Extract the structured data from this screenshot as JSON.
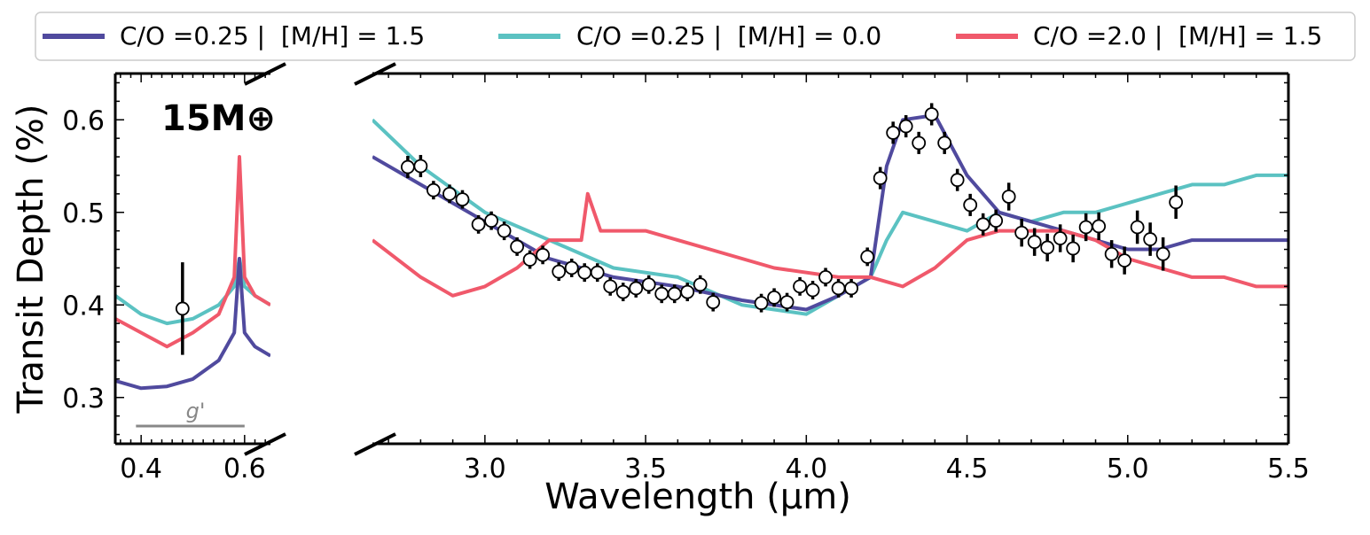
{
  "chart_data": {
    "type": "line",
    "ylabel": "Transit Depth (%)",
    "xlabel": "Wavelength (μm)",
    "annotation": "15M⊕",
    "filter_label": "g'",
    "filter_range": [
      0.39,
      0.6
    ],
    "ylim": [
      0.25,
      0.65
    ],
    "yticks": [
      "0.3",
      "0.4",
      "0.5",
      "0.6"
    ],
    "yticks_values": [
      0.3,
      0.4,
      0.5,
      0.6
    ],
    "panels": [
      {
        "xlim": [
          0.35,
          0.65
        ],
        "xticks": [
          "0.4",
          "0.6"
        ],
        "xticks_values": [
          0.4,
          0.6
        ]
      },
      {
        "xlim": [
          2.65,
          5.5
        ],
        "xticks": [
          "3.0",
          "3.5",
          "4.0",
          "4.5",
          "5.0",
          "5.5"
        ],
        "xticks_values": [
          3.0,
          3.5,
          4.0,
          4.5,
          5.0,
          5.5
        ]
      }
    ],
    "legend_position": "top",
    "series": [
      {
        "name": "C/O =0.25 |  [M/H] = 1.5",
        "color": "#504a9e",
        "optical": {
          "x": [
            0.35,
            0.4,
            0.45,
            0.5,
            0.55,
            0.58,
            0.59,
            0.6,
            0.62,
            0.65
          ],
          "y": [
            0.318,
            0.31,
            0.312,
            0.32,
            0.34,
            0.37,
            0.45,
            0.37,
            0.355,
            0.345
          ]
        },
        "ir": {
          "x": [
            2.65,
            2.8,
            3.0,
            3.2,
            3.4,
            3.6,
            3.8,
            4.0,
            4.1,
            4.2,
            4.25,
            4.3,
            4.4,
            4.5,
            4.6,
            4.7,
            4.8,
            4.9,
            5.0,
            5.1,
            5.2,
            5.3,
            5.4,
            5.5
          ],
          "y": [
            0.56,
            0.53,
            0.49,
            0.45,
            0.43,
            0.42,
            0.405,
            0.395,
            0.41,
            0.43,
            0.55,
            0.6,
            0.605,
            0.54,
            0.5,
            0.49,
            0.48,
            0.47,
            0.46,
            0.46,
            0.47,
            0.47,
            0.47,
            0.47
          ]
        }
      },
      {
        "name": "C/O =0.25 |  [M/H] = 0.0",
        "color": "#5bc2c2",
        "optical": {
          "x": [
            0.35,
            0.4,
            0.45,
            0.5,
            0.55,
            0.58,
            0.59,
            0.6,
            0.62,
            0.65
          ],
          "y": [
            0.41,
            0.39,
            0.38,
            0.385,
            0.4,
            0.42,
            0.45,
            0.42,
            0.41,
            0.4
          ]
        },
        "ir": {
          "x": [
            2.65,
            2.8,
            3.0,
            3.2,
            3.4,
            3.6,
            3.8,
            4.0,
            4.1,
            4.2,
            4.25,
            4.3,
            4.4,
            4.5,
            4.6,
            4.7,
            4.8,
            4.9,
            5.0,
            5.1,
            5.2,
            5.3,
            5.4,
            5.5
          ],
          "y": [
            0.6,
            0.55,
            0.5,
            0.47,
            0.44,
            0.43,
            0.4,
            0.39,
            0.41,
            0.43,
            0.47,
            0.5,
            0.49,
            0.48,
            0.5,
            0.49,
            0.5,
            0.5,
            0.51,
            0.52,
            0.53,
            0.53,
            0.54,
            0.54
          ]
        }
      },
      {
        "name": "C/O =2.0 |  [M/H] = 1.5",
        "color": "#f0596b",
        "optical": {
          "x": [
            0.35,
            0.4,
            0.45,
            0.5,
            0.55,
            0.58,
            0.59,
            0.6,
            0.62,
            0.65
          ],
          "y": [
            0.385,
            0.37,
            0.355,
            0.37,
            0.39,
            0.43,
            0.56,
            0.43,
            0.41,
            0.4
          ]
        },
        "ir": {
          "x": [
            2.65,
            2.8,
            2.9,
            3.0,
            3.1,
            3.2,
            3.3,
            3.32,
            3.36,
            3.5,
            3.7,
            3.9,
            4.1,
            4.2,
            4.3,
            4.4,
            4.5,
            4.6,
            4.7,
            4.8,
            4.9,
            5.0,
            5.1,
            5.2,
            5.3,
            5.4,
            5.5
          ],
          "y": [
            0.47,
            0.43,
            0.41,
            0.42,
            0.44,
            0.47,
            0.47,
            0.52,
            0.48,
            0.48,
            0.46,
            0.44,
            0.43,
            0.43,
            0.42,
            0.44,
            0.47,
            0.48,
            0.48,
            0.48,
            0.47,
            0.45,
            0.44,
            0.43,
            0.43,
            0.42,
            0.42
          ]
        }
      }
    ],
    "observations": {
      "optical": [
        {
          "x": 0.48,
          "y": 0.396,
          "err": 0.05
        }
      ],
      "ir": [
        {
          "x": 2.76,
          "y": 0.549,
          "err": 0.012
        },
        {
          "x": 2.8,
          "y": 0.55,
          "err": 0.012
        },
        {
          "x": 2.84,
          "y": 0.524,
          "err": 0.01
        },
        {
          "x": 2.89,
          "y": 0.52,
          "err": 0.01
        },
        {
          "x": 2.93,
          "y": 0.514,
          "err": 0.01
        },
        {
          "x": 2.98,
          "y": 0.487,
          "err": 0.01
        },
        {
          "x": 3.02,
          "y": 0.491,
          "err": 0.01
        },
        {
          "x": 3.06,
          "y": 0.48,
          "err": 0.01
        },
        {
          "x": 3.1,
          "y": 0.463,
          "err": 0.01
        },
        {
          "x": 3.14,
          "y": 0.449,
          "err": 0.01
        },
        {
          "x": 3.18,
          "y": 0.454,
          "err": 0.01
        },
        {
          "x": 3.23,
          "y": 0.436,
          "err": 0.01
        },
        {
          "x": 3.27,
          "y": 0.44,
          "err": 0.01
        },
        {
          "x": 3.31,
          "y": 0.435,
          "err": 0.01
        },
        {
          "x": 3.35,
          "y": 0.435,
          "err": 0.01
        },
        {
          "x": 3.39,
          "y": 0.42,
          "err": 0.01
        },
        {
          "x": 3.43,
          "y": 0.414,
          "err": 0.01
        },
        {
          "x": 3.47,
          "y": 0.418,
          "err": 0.01
        },
        {
          "x": 3.51,
          "y": 0.422,
          "err": 0.01
        },
        {
          "x": 3.55,
          "y": 0.412,
          "err": 0.01
        },
        {
          "x": 3.59,
          "y": 0.412,
          "err": 0.01
        },
        {
          "x": 3.63,
          "y": 0.414,
          "err": 0.01
        },
        {
          "x": 3.67,
          "y": 0.422,
          "err": 0.01
        },
        {
          "x": 3.71,
          "y": 0.403,
          "err": 0.01
        },
        {
          "x": 3.86,
          "y": 0.402,
          "err": 0.01
        },
        {
          "x": 3.9,
          "y": 0.408,
          "err": 0.01
        },
        {
          "x": 3.94,
          "y": 0.403,
          "err": 0.01
        },
        {
          "x": 3.98,
          "y": 0.42,
          "err": 0.01
        },
        {
          "x": 4.02,
          "y": 0.416,
          "err": 0.01
        },
        {
          "x": 4.06,
          "y": 0.43,
          "err": 0.01
        },
        {
          "x": 4.1,
          "y": 0.418,
          "err": 0.01
        },
        {
          "x": 4.14,
          "y": 0.418,
          "err": 0.01
        },
        {
          "x": 4.19,
          "y": 0.452,
          "err": 0.01
        },
        {
          "x": 4.23,
          "y": 0.537,
          "err": 0.012
        },
        {
          "x": 4.27,
          "y": 0.586,
          "err": 0.012
        },
        {
          "x": 4.31,
          "y": 0.593,
          "err": 0.012
        },
        {
          "x": 4.35,
          "y": 0.575,
          "err": 0.012
        },
        {
          "x": 4.39,
          "y": 0.606,
          "err": 0.012
        },
        {
          "x": 4.43,
          "y": 0.575,
          "err": 0.012
        },
        {
          "x": 4.47,
          "y": 0.535,
          "err": 0.012
        },
        {
          "x": 4.51,
          "y": 0.508,
          "err": 0.012
        },
        {
          "x": 4.55,
          "y": 0.487,
          "err": 0.012
        },
        {
          "x": 4.59,
          "y": 0.491,
          "err": 0.012
        },
        {
          "x": 4.63,
          "y": 0.517,
          "err": 0.015
        },
        {
          "x": 4.67,
          "y": 0.478,
          "err": 0.015
        },
        {
          "x": 4.71,
          "y": 0.468,
          "err": 0.015
        },
        {
          "x": 4.75,
          "y": 0.462,
          "err": 0.015
        },
        {
          "x": 4.79,
          "y": 0.472,
          "err": 0.015
        },
        {
          "x": 4.83,
          "y": 0.461,
          "err": 0.015
        },
        {
          "x": 4.87,
          "y": 0.484,
          "err": 0.015
        },
        {
          "x": 4.91,
          "y": 0.485,
          "err": 0.015
        },
        {
          "x": 4.95,
          "y": 0.455,
          "err": 0.015
        },
        {
          "x": 4.99,
          "y": 0.448,
          "err": 0.015
        },
        {
          "x": 5.03,
          "y": 0.484,
          "err": 0.018
        },
        {
          "x": 5.07,
          "y": 0.471,
          "err": 0.018
        },
        {
          "x": 5.11,
          "y": 0.455,
          "err": 0.018
        },
        {
          "x": 5.15,
          "y": 0.511,
          "err": 0.018
        }
      ]
    }
  }
}
